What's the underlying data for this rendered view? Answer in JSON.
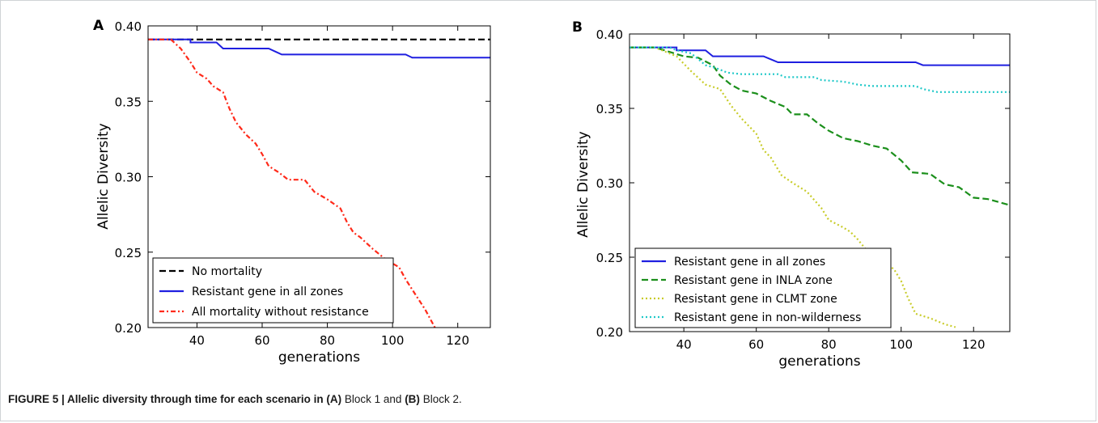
{
  "caption": {
    "label": "FIGURE 5 | Allelic diversity through time for each scenario in",
    "partA": "(A)",
    "blockA": " Block 1 and ",
    "partB": "(B)",
    "blockB": " Block 2."
  },
  "chart_data": [
    {
      "type": "line",
      "panel_label": "A",
      "xlabel": "generations",
      "ylabel": "Allelic Diversity",
      "xlim": [
        25,
        130
      ],
      "ylim": [
        0.2,
        0.4
      ],
      "xticks": [
        40,
        60,
        80,
        100,
        120
      ],
      "yticks": [
        0.2,
        0.25,
        0.3,
        0.35,
        0.4
      ],
      "ytick_labels": [
        "0.20",
        "0.25",
        "0.30",
        "0.35",
        "0.40"
      ],
      "grid": false,
      "legend_position": "lower-left",
      "series": [
        {
          "name": "No mortality",
          "color": "#000000",
          "style": "dashed",
          "points": [
            [
              25,
              0.391
            ],
            [
              130,
              0.391
            ]
          ]
        },
        {
          "name": "Resistant gene in all zones",
          "color": "#1f1fe0",
          "style": "solid",
          "points": [
            [
              25,
              0.391
            ],
            [
              38,
              0.391
            ],
            [
              38,
              0.389
            ],
            [
              46,
              0.389
            ],
            [
              48,
              0.385
            ],
            [
              62,
              0.385
            ],
            [
              64,
              0.383
            ],
            [
              66,
              0.381
            ],
            [
              104,
              0.381
            ],
            [
              106,
              0.379
            ],
            [
              130,
              0.379
            ]
          ]
        },
        {
          "name": "All mortality without resistance",
          "color": "#ff2a1a",
          "style": "dashdot",
          "points": [
            [
              25,
              0.391
            ],
            [
              32,
              0.391
            ],
            [
              35,
              0.385
            ],
            [
              38,
              0.376
            ],
            [
              40,
              0.369
            ],
            [
              43,
              0.365
            ],
            [
              45,
              0.36
            ],
            [
              48,
              0.356
            ],
            [
              50,
              0.345
            ],
            [
              52,
              0.336
            ],
            [
              55,
              0.328
            ],
            [
              58,
              0.322
            ],
            [
              60,
              0.315
            ],
            [
              62,
              0.307
            ],
            [
              65,
              0.303
            ],
            [
              68,
              0.298
            ],
            [
              73,
              0.298
            ],
            [
              76,
              0.29
            ],
            [
              80,
              0.285
            ],
            [
              84,
              0.279
            ],
            [
              86,
              0.27
            ],
            [
              88,
              0.263
            ],
            [
              90,
              0.26
            ],
            [
              94,
              0.252
            ],
            [
              98,
              0.245
            ],
            [
              102,
              0.24
            ],
            [
              104,
              0.232
            ],
            [
              107,
              0.222
            ],
            [
              110,
              0.212
            ],
            [
              113,
              0.2
            ]
          ]
        }
      ]
    },
    {
      "type": "line",
      "panel_label": "B",
      "xlabel": "generations",
      "ylabel": "Allelic Diversity",
      "xlim": [
        25,
        130
      ],
      "ylim": [
        0.2,
        0.4
      ],
      "xticks": [
        40,
        60,
        80,
        100,
        120
      ],
      "yticks": [
        0.2,
        0.25,
        0.3,
        0.35,
        0.4
      ],
      "ytick_labels": [
        "0.20",
        "0.25",
        "0.30",
        "0.35",
        "0.40"
      ],
      "grid": false,
      "legend_position": "lower-left",
      "series": [
        {
          "name": "Resistant gene in all zones",
          "color": "#1f1fe0",
          "style": "solid",
          "points": [
            [
              25,
              0.391
            ],
            [
              38,
              0.391
            ],
            [
              38,
              0.389
            ],
            [
              46,
              0.389
            ],
            [
              48,
              0.385
            ],
            [
              62,
              0.385
            ],
            [
              64,
              0.383
            ],
            [
              66,
              0.381
            ],
            [
              104,
              0.381
            ],
            [
              106,
              0.379
            ],
            [
              130,
              0.379
            ]
          ]
        },
        {
          "name": "Resistant gene in INLA zone",
          "color": "#1b8f1b",
          "style": "dashed",
          "points": [
            [
              25,
              0.391
            ],
            [
              32,
              0.391
            ],
            [
              36,
              0.388
            ],
            [
              40,
              0.385
            ],
            [
              44,
              0.384
            ],
            [
              48,
              0.379
            ],
            [
              50,
              0.372
            ],
            [
              53,
              0.366
            ],
            [
              56,
              0.362
            ],
            [
              60,
              0.36
            ],
            [
              64,
              0.355
            ],
            [
              68,
              0.351
            ],
            [
              70,
              0.346
            ],
            [
              74,
              0.346
            ],
            [
              77,
              0.34
            ],
            [
              80,
              0.335
            ],
            [
              84,
              0.33
            ],
            [
              88,
              0.328
            ],
            [
              92,
              0.325
            ],
            [
              96,
              0.323
            ],
            [
              100,
              0.315
            ],
            [
              103,
              0.307
            ],
            [
              108,
              0.306
            ],
            [
              112,
              0.299
            ],
            [
              116,
              0.297
            ],
            [
              120,
              0.29
            ],
            [
              124,
              0.289
            ],
            [
              130,
              0.285
            ]
          ]
        },
        {
          "name": "Resistant gene in CLMT zone",
          "color": "#c8cc2a",
          "style": "dotted",
          "points": [
            [
              25,
              0.391
            ],
            [
              32,
              0.391
            ],
            [
              38,
              0.385
            ],
            [
              42,
              0.375
            ],
            [
              46,
              0.366
            ],
            [
              50,
              0.363
            ],
            [
              53,
              0.352
            ],
            [
              56,
              0.343
            ],
            [
              60,
              0.333
            ],
            [
              62,
              0.322
            ],
            [
              64,
              0.317
            ],
            [
              67,
              0.305
            ],
            [
              70,
              0.3
            ],
            [
              74,
              0.294
            ],
            [
              78,
              0.283
            ],
            [
              80,
              0.275
            ],
            [
              84,
              0.27
            ],
            [
              86,
              0.267
            ],
            [
              88,
              0.262
            ],
            [
              90,
              0.256
            ],
            [
              92,
              0.247
            ],
            [
              96,
              0.245
            ],
            [
              98,
              0.242
            ],
            [
              100,
              0.234
            ],
            [
              102,
              0.222
            ],
            [
              104,
              0.212
            ],
            [
              108,
              0.209
            ],
            [
              112,
              0.205
            ],
            [
              115,
              0.203
            ]
          ]
        },
        {
          "name": "Resistant gene in non-wilderness",
          "color": "#1fc8c8",
          "style": "dotted",
          "points": [
            [
              25,
              0.391
            ],
            [
              36,
              0.391
            ],
            [
              38,
              0.389
            ],
            [
              42,
              0.387
            ],
            [
              46,
              0.379
            ],
            [
              49,
              0.377
            ],
            [
              52,
              0.374
            ],
            [
              56,
              0.373
            ],
            [
              66,
              0.373
            ],
            [
              68,
              0.371
            ],
            [
              76,
              0.371
            ],
            [
              78,
              0.369
            ],
            [
              84,
              0.368
            ],
            [
              88,
              0.366
            ],
            [
              92,
              0.365
            ],
            [
              104,
              0.365
            ],
            [
              106,
              0.363
            ],
            [
              110,
              0.361
            ],
            [
              130,
              0.361
            ]
          ]
        }
      ]
    }
  ]
}
